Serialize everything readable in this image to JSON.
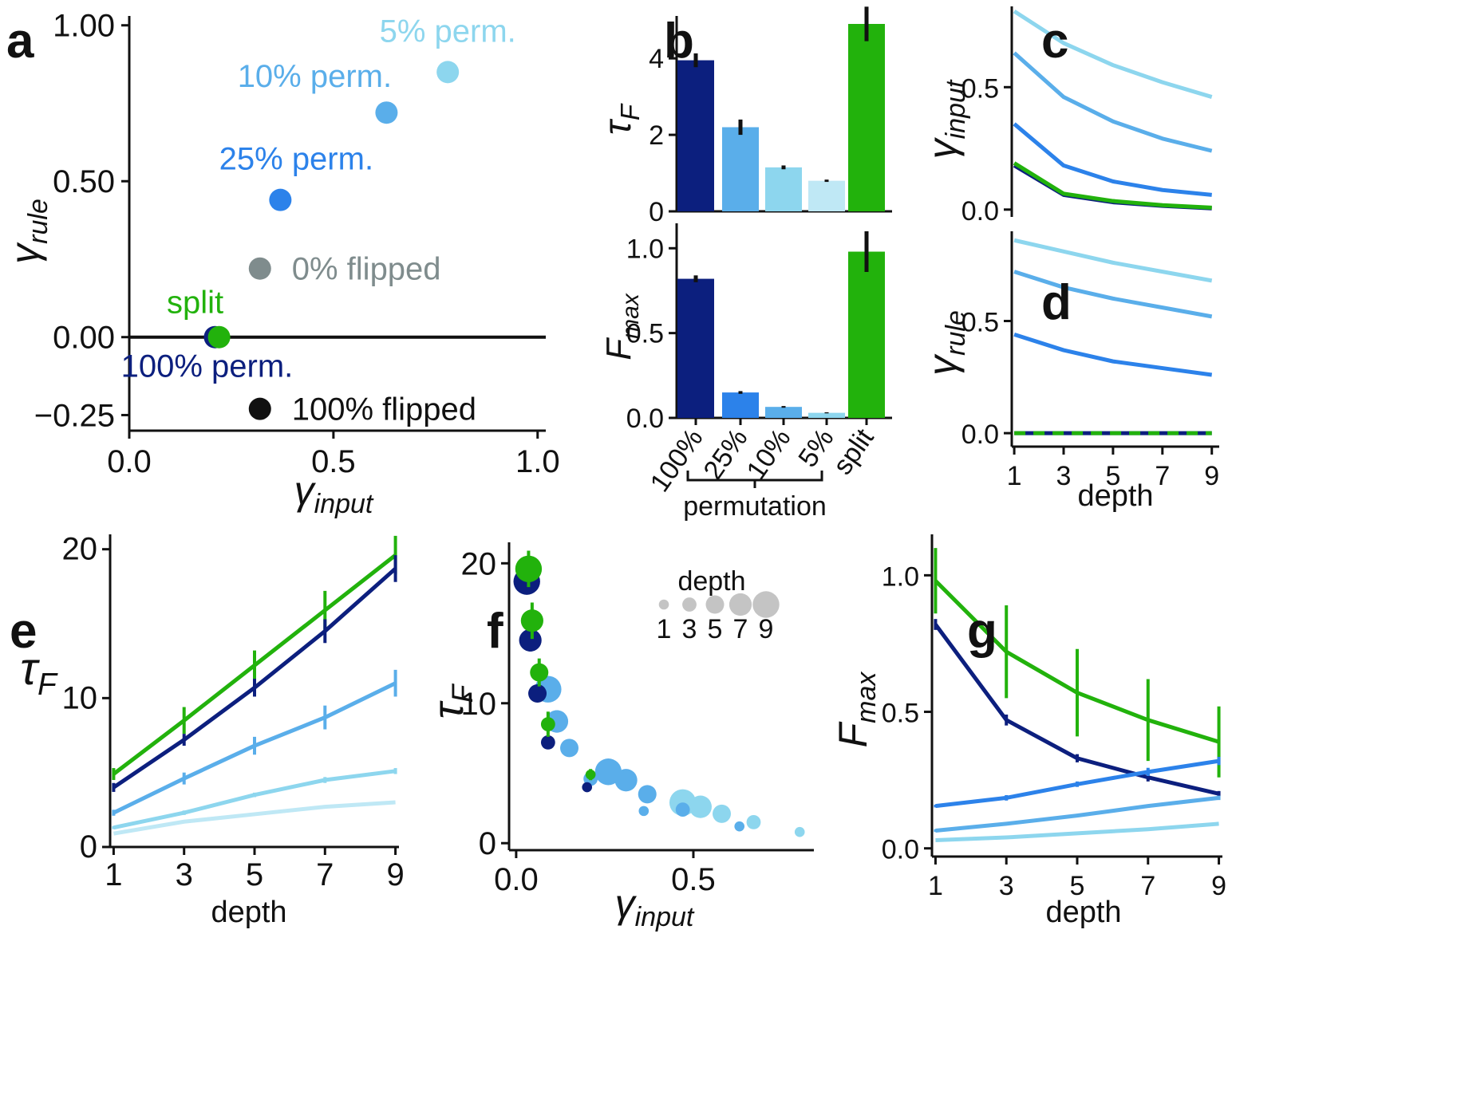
{
  "colors": {
    "p100": "#0c1f7e",
    "p25": "#2c82ea",
    "p10": "#5aaeea",
    "p5": "#8dd6ee",
    "p5b": "#bfe8f5",
    "split": "#22b20c",
    "gray": "#7f8c8d",
    "black": "#111111",
    "sizeLegend": "#c4c4c4"
  },
  "panel_labels": {
    "a": "a",
    "b": "b",
    "c": "c",
    "d": "d",
    "e": "e",
    "f": "f",
    "g": "g"
  },
  "chart_data": [
    {
      "id": "a",
      "type": "scatter",
      "xlabel": "γinput",
      "ylabel": "γrule",
      "xlim": [
        0,
        1.02
      ],
      "ylim": [
        -0.3,
        1.03
      ],
      "xticks": [
        "0.0",
        "0.5",
        "1.0"
      ],
      "xtick_values": [
        0,
        0.5,
        1.0
      ],
      "yticks": [
        "−0.25",
        "0.00",
        "0.50",
        "1.00"
      ],
      "ytick_values": [
        -0.25,
        0,
        0.5,
        1.0
      ],
      "hline": 0,
      "points": [
        {
          "label": "5% perm.",
          "x": 0.78,
          "y": 0.85,
          "color": "p5"
        },
        {
          "label": "10% perm.",
          "x": 0.63,
          "y": 0.72,
          "color": "p10"
        },
        {
          "label": "25% perm.",
          "x": 0.37,
          "y": 0.44,
          "color": "p25"
        },
        {
          "label": "0% flipped",
          "x": 0.32,
          "y": 0.22,
          "color": "gray"
        },
        {
          "label": "100% perm.",
          "x": 0.21,
          "y": 0.0,
          "color": "p100"
        },
        {
          "label": "split",
          "x": 0.22,
          "y": 0.0,
          "color": "split"
        },
        {
          "label": "100% flipped",
          "x": 0.32,
          "y": -0.23,
          "color": "black"
        }
      ]
    },
    {
      "id": "b_top",
      "type": "bar",
      "ylabel": "τF",
      "ylim": [
        0,
        4.9
      ],
      "yticks": [
        "0",
        "2",
        "4"
      ],
      "ytick_values": [
        0,
        2,
        4
      ],
      "bars": [
        {
          "value": 3.95,
          "err": 0.18,
          "color": "p100"
        },
        {
          "value": 2.2,
          "err": 0.2,
          "color": "p10"
        },
        {
          "value": 1.15,
          "err": 0.05,
          "color": "p5"
        },
        {
          "value": 0.8,
          "err": 0.03,
          "color": "p5b"
        },
        {
          "value": 4.9,
          "err": 0.45,
          "color": "split"
        }
      ]
    },
    {
      "id": "b_bottom",
      "type": "bar",
      "ylabel": "Fmax",
      "ylim": [
        0,
        1.1
      ],
      "yticks": [
        "0.0",
        "0.5",
        "1.0"
      ],
      "ytick_values": [
        0,
        0.5,
        1.0
      ],
      "categories": [
        "100%",
        "25%",
        "10%",
        "5%",
        "split"
      ],
      "group_label": "permutation",
      "bars": [
        {
          "value": 0.82,
          "err": 0.02,
          "color": "p100"
        },
        {
          "value": 0.15,
          "err": 0.008,
          "color": "p25"
        },
        {
          "value": 0.065,
          "err": 0.005,
          "color": "p10"
        },
        {
          "value": 0.03,
          "err": 0.003,
          "color": "p5"
        },
        {
          "value": 0.98,
          "err": 0.12,
          "color": "split"
        }
      ]
    },
    {
      "id": "c",
      "type": "line",
      "ylabel": "γinput",
      "x": [
        1,
        3,
        5,
        7,
        9
      ],
      "xlim": [
        0.9,
        9.3
      ],
      "ylim": [
        -0.03,
        0.83
      ],
      "yticks": [
        "0.0",
        "0.5"
      ],
      "ytick_values": [
        0,
        0.5
      ],
      "series": [
        {
          "color": "p5",
          "values": [
            0.81,
            0.68,
            0.59,
            0.52,
            0.46
          ]
        },
        {
          "color": "p10",
          "values": [
            0.64,
            0.46,
            0.36,
            0.29,
            0.24
          ]
        },
        {
          "color": "p25",
          "values": [
            0.35,
            0.18,
            0.115,
            0.08,
            0.06
          ]
        },
        {
          "color": "p100",
          "values": [
            0.18,
            0.06,
            0.03,
            0.015,
            0.005
          ]
        },
        {
          "color": "split",
          "values": [
            0.19,
            0.065,
            0.035,
            0.018,
            0.008
          ]
        }
      ]
    },
    {
      "id": "d",
      "type": "line",
      "ylabel": "γrule",
      "xlabel": "depth",
      "x": [
        1,
        3,
        5,
        7,
        9
      ],
      "xlim": [
        0.9,
        9.3
      ],
      "ylim": [
        -0.06,
        0.9
      ],
      "xticks": [
        "1",
        "3",
        "5",
        "7",
        "9"
      ],
      "yticks": [
        "0.0",
        "0.5"
      ],
      "ytick_values": [
        0,
        0.5
      ],
      "series": [
        {
          "color": "p5",
          "values": [
            0.86,
            0.81,
            0.76,
            0.72,
            0.68
          ]
        },
        {
          "color": "p10",
          "values": [
            0.72,
            0.65,
            0.6,
            0.56,
            0.52
          ]
        },
        {
          "color": "p25",
          "values": [
            0.44,
            0.37,
            0.32,
            0.29,
            0.26
          ]
        },
        {
          "color": "p100",
          "values": [
            0,
            0,
            0,
            0,
            0
          ]
        },
        {
          "color": "split",
          "values": [
            0,
            0,
            0,
            0,
            0
          ],
          "dashed": true
        }
      ]
    },
    {
      "id": "e",
      "type": "line",
      "ylabel": "τF",
      "xlabel": "depth",
      "x": [
        1,
        3,
        5,
        7,
        9
      ],
      "xlim": [
        0.9,
        9.1
      ],
      "ylim": [
        0,
        21
      ],
      "xticks": [
        "1",
        "3",
        "5",
        "7",
        "9"
      ],
      "yticks": [
        "0",
        "10",
        "20"
      ],
      "ytick_values": [
        0,
        10,
        20
      ],
      "series": [
        {
          "color": "split",
          "values": [
            4.9,
            8.5,
            12.2,
            15.9,
            19.6
          ],
          "err": [
            0.4,
            0.9,
            1.0,
            1.3,
            1.3
          ]
        },
        {
          "color": "p100",
          "values": [
            4.0,
            7.2,
            10.7,
            14.5,
            18.7
          ],
          "err": [
            0.3,
            0.4,
            0.6,
            0.8,
            0.9
          ]
        },
        {
          "color": "p10",
          "values": [
            2.3,
            4.6,
            6.8,
            8.7,
            11.0
          ],
          "err": [
            0.2,
            0.4,
            0.6,
            0.8,
            0.9
          ]
        },
        {
          "color": "p5",
          "values": [
            1.3,
            2.3,
            3.5,
            4.5,
            5.1
          ],
          "err": [
            0.1,
            0.15,
            0.15,
            0.2,
            0.2
          ]
        },
        {
          "color": "p5b",
          "values": [
            0.9,
            1.7,
            2.2,
            2.7,
            3.0
          ],
          "err": [
            0,
            0,
            0,
            0,
            0
          ]
        }
      ]
    },
    {
      "id": "f",
      "type": "scatter",
      "ylabel": "τF",
      "xlabel": "γinput",
      "xlim": [
        -0.02,
        0.84
      ],
      "ylim": [
        -0.5,
        21.5
      ],
      "xticks": [
        "0.0",
        "0.5"
      ],
      "xtick_values": [
        0,
        0.5
      ],
      "yticks": [
        "0",
        "10",
        "20"
      ],
      "ytick_values": [
        0,
        10,
        20
      ],
      "size_legend": {
        "title": "depth",
        "depths": [
          "1",
          "3",
          "5",
          "7",
          "9"
        ]
      },
      "points": [
        {
          "color": "p5",
          "depth": 9,
          "x": 0.47,
          "y": 2.9
        },
        {
          "color": "p5",
          "depth": 7,
          "x": 0.52,
          "y": 2.6
        },
        {
          "color": "p5",
          "depth": 5,
          "x": 0.58,
          "y": 2.1
        },
        {
          "color": "p5",
          "depth": 3,
          "x": 0.67,
          "y": 1.5
        },
        {
          "color": "p5",
          "depth": 1,
          "x": 0.8,
          "y": 0.8
        },
        {
          "color": "p10",
          "depth": 9,
          "x": 0.26,
          "y": 5.1
        },
        {
          "color": "p10",
          "depth": 7,
          "x": 0.31,
          "y": 4.5
        },
        {
          "color": "p10",
          "depth": 5,
          "x": 0.37,
          "y": 3.5
        },
        {
          "color": "p10",
          "depth": 3,
          "x": 0.47,
          "y": 2.4
        },
        {
          "color": "p10",
          "depth": 1,
          "x": 0.63,
          "y": 1.2
        },
        {
          "color": "p10",
          "depth": 9,
          "x": 0.09,
          "y": 11.0,
          "err": 0.9
        },
        {
          "color": "p10",
          "depth": 7,
          "x": 0.115,
          "y": 8.7,
          "err": 0.8
        },
        {
          "color": "p10",
          "depth": 5,
          "x": 0.15,
          "y": 6.8,
          "err": 0.6
        },
        {
          "color": "p10",
          "depth": 3,
          "x": 0.21,
          "y": 4.6,
          "err": 0.4
        },
        {
          "color": "p10",
          "depth": 1,
          "x": 0.36,
          "y": 2.3
        },
        {
          "color": "p100",
          "depth": 9,
          "x": 0.03,
          "y": 18.7,
          "err": 0.9
        },
        {
          "color": "p100",
          "depth": 7,
          "x": 0.04,
          "y": 14.5,
          "err": 0.8
        },
        {
          "color": "p100",
          "depth": 5,
          "x": 0.06,
          "y": 10.7,
          "err": 0.6
        },
        {
          "color": "p100",
          "depth": 3,
          "x": 0.09,
          "y": 7.2,
          "err": 0.4
        },
        {
          "color": "p100",
          "depth": 1,
          "x": 0.2,
          "y": 4.0,
          "err": 0.3
        },
        {
          "color": "split",
          "depth": 9,
          "x": 0.035,
          "y": 19.6,
          "err": 1.3
        },
        {
          "color": "split",
          "depth": 7,
          "x": 0.045,
          "y": 15.9,
          "err": 1.3
        },
        {
          "color": "split",
          "depth": 5,
          "x": 0.065,
          "y": 12.2,
          "err": 1.0
        },
        {
          "color": "split",
          "depth": 3,
          "x": 0.09,
          "y": 8.5,
          "err": 0.9
        },
        {
          "color": "split",
          "depth": 1,
          "x": 0.21,
          "y": 4.9,
          "err": 0.4
        }
      ]
    },
    {
      "id": "g",
      "type": "line",
      "ylabel": "Fmax",
      "xlabel": "depth",
      "x": [
        1,
        3,
        5,
        7,
        9
      ],
      "xlim": [
        0.9,
        9.1
      ],
      "ylim": [
        -0.03,
        1.15
      ],
      "xticks": [
        "1",
        "3",
        "5",
        "7",
        "9"
      ],
      "yticks": [
        "0.0",
        "0.5",
        "1.0"
      ],
      "ytick_values": [
        0,
        0.5,
        1.0
      ],
      "series": [
        {
          "color": "split",
          "values": [
            0.98,
            0.72,
            0.57,
            0.47,
            0.39
          ],
          "err": [
            0.12,
            0.17,
            0.16,
            0.15,
            0.13
          ]
        },
        {
          "color": "p100",
          "values": [
            0.82,
            0.47,
            0.33,
            0.26,
            0.2
          ],
          "err": [
            0.02,
            0.02,
            0.015,
            0.015,
            0.01
          ]
        },
        {
          "color": "p25",
          "values": [
            0.155,
            0.185,
            0.235,
            0.28,
            0.32
          ],
          "err": [
            0.005,
            0.01,
            0.01,
            0.015,
            0.015
          ]
        },
        {
          "color": "p10",
          "values": [
            0.065,
            0.09,
            0.12,
            0.155,
            0.185
          ],
          "err": [
            0.005,
            0.005,
            0.005,
            0.005,
            0.008
          ]
        },
        {
          "color": "p5",
          "values": [
            0.03,
            0.04,
            0.055,
            0.07,
            0.09
          ],
          "err": [
            0,
            0,
            0,
            0,
            0
          ]
        }
      ]
    }
  ]
}
